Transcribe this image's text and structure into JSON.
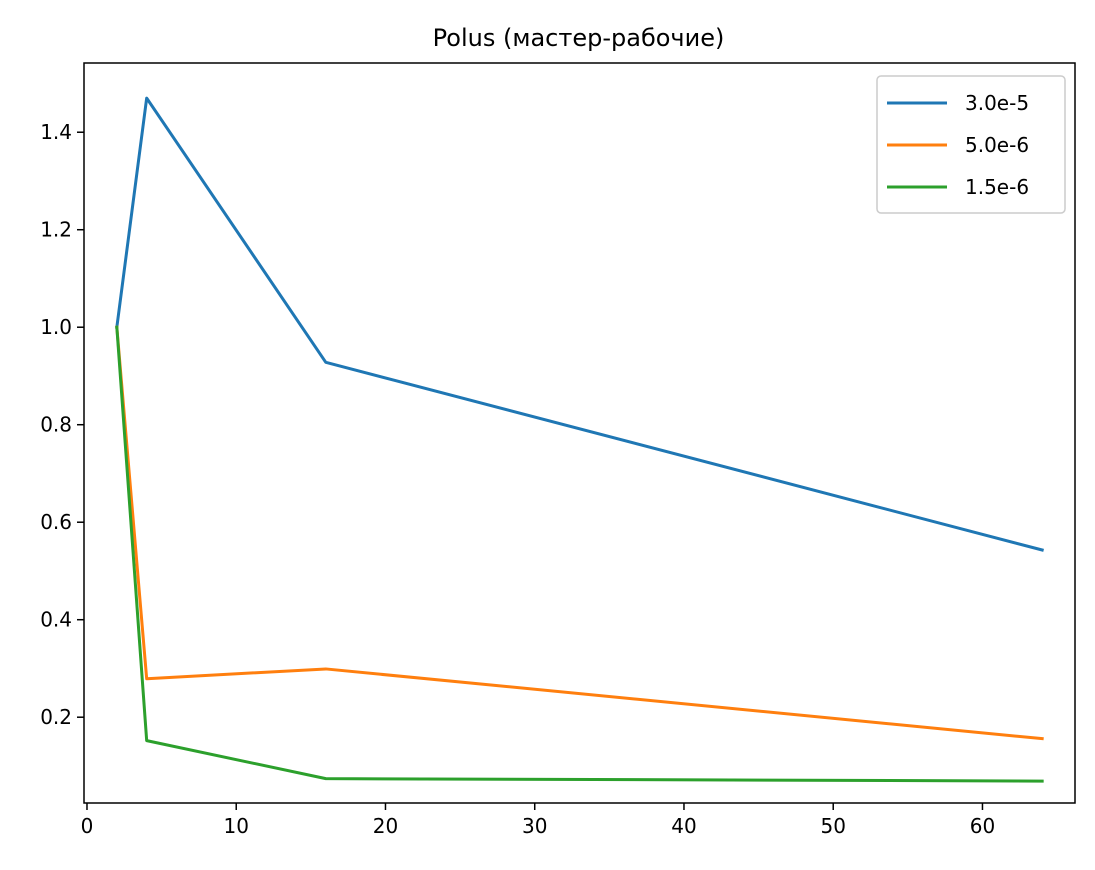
{
  "chart_data": {
    "type": "line",
    "title": "Polus (мастер-рабочие)",
    "xlabel": "",
    "ylabel": "",
    "x": [
      2,
      4,
      16,
      64
    ],
    "xlim": [
      -0.2,
      66.2
    ],
    "ylim": [
      0.024,
      1.542
    ],
    "xticks": [
      0,
      10,
      20,
      30,
      40,
      50,
      60
    ],
    "xtick_labels": [
      "0",
      "10",
      "20",
      "30",
      "40",
      "50",
      "60"
    ],
    "yticks": [
      0.2,
      0.4,
      0.6,
      0.8,
      1.0,
      1.2,
      1.4
    ],
    "ytick_labels": [
      "0.2",
      "0.4",
      "0.6",
      "0.8",
      "1.0",
      "1.2",
      "1.4"
    ],
    "grid": false,
    "legend_position": "top-right",
    "series": [
      {
        "name": "3.0e-5",
        "color": "#1f77b4",
        "values": [
          1.0,
          1.47,
          0.928,
          0.543
        ]
      },
      {
        "name": "5.0e-6",
        "color": "#ff7f0e",
        "values": [
          1.0,
          0.279,
          0.299,
          0.156
        ]
      },
      {
        "name": "1.5e-6",
        "color": "#2ca02c",
        "values": [
          1.0,
          0.152,
          0.074,
          0.069
        ]
      }
    ]
  }
}
